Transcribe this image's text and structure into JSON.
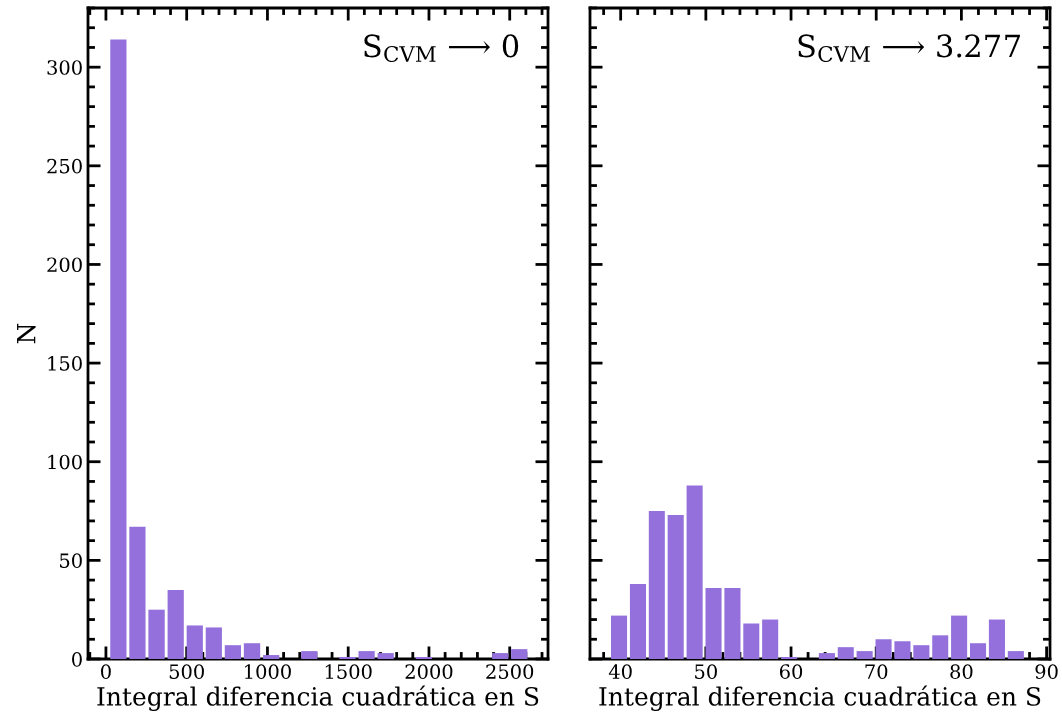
{
  "chart_data": [
    {
      "type": "histogram",
      "xlabel": "Integral diferencia cuadrática en S",
      "ylabel": "N",
      "color": "#9370db",
      "bins": [
        18,
        136,
        254,
        373,
        491,
        609,
        727,
        845,
        964,
        1082,
        1200,
        1318,
        1436,
        1555,
        1673,
        1791,
        1909,
        2027,
        2146,
        2264,
        2382,
        2500,
        2618
      ],
      "values": [
        314,
        67,
        25,
        35,
        17,
        16,
        7,
        8,
        2,
        0,
        4,
        0,
        1,
        4,
        3,
        0,
        1,
        0,
        0,
        0,
        3,
        5
      ],
      "xlim": [
        -111,
        2737
      ],
      "xticks": [
        0,
        500,
        1000,
        1500,
        2000,
        2500
      ],
      "ylim": [
        0,
        330
      ],
      "yticks": [
        0,
        50,
        100,
        150,
        200,
        250,
        300
      ],
      "annotations": [
        "S$_{CVM}$ ⟶ 0"
      ]
    },
    {
      "type": "histogram",
      "xlabel": "Integral diferencia cuadrática en S",
      "color": "#9370db",
      "bins": [
        38.7,
        40.92,
        43.14,
        45.35,
        47.57,
        49.79,
        52.01,
        54.23,
        56.44,
        58.66,
        60.88,
        63.1,
        65.32,
        67.53,
        69.75,
        71.97,
        74.19,
        76.41,
        78.62,
        80.84,
        83.06,
        85.28,
        87.5
      ],
      "values": [
        22,
        38,
        75,
        73,
        88,
        36,
        36,
        18,
        20,
        1,
        0,
        3,
        6,
        4,
        10,
        9,
        7,
        12,
        22,
        8,
        20,
        4
      ],
      "xlim": [
        36.4,
        90.4
      ],
      "xticks": [
        40,
        50,
        60,
        70,
        80,
        90
      ],
      "ylim": [
        0,
        330
      ],
      "yticks": [
        0,
        50,
        100,
        150,
        200,
        250,
        300
      ],
      "tick_labels": "x",
      "annotations": [
        "S$_{CVM}$ ⟶ 3.277"
      ]
    }
  ]
}
